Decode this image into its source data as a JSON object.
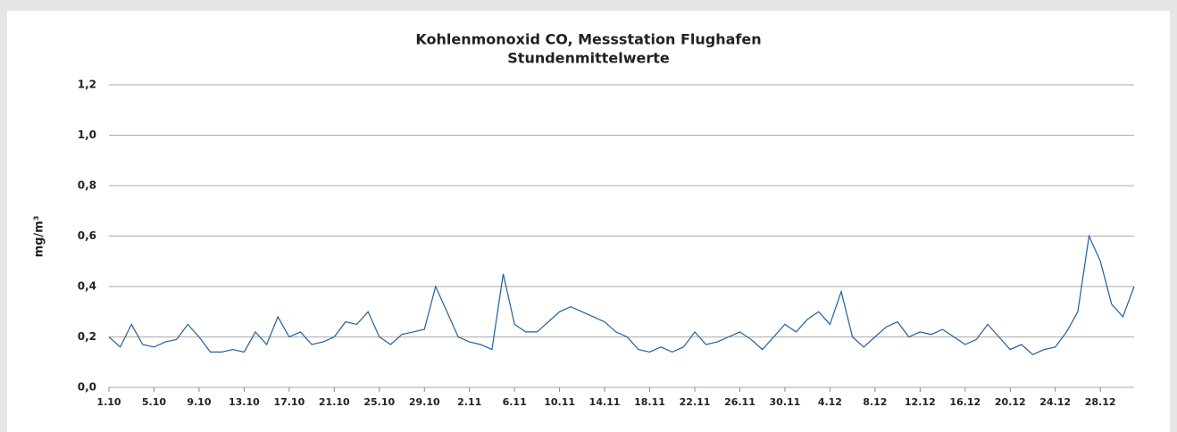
{
  "chart_data": {
    "type": "line",
    "title": "Kohlenmonoxid CO, Messstation Flughafen",
    "subtitle": "Stundenmittelwerte",
    "y_label": "mg/m³",
    "categories": [
      "1.10",
      null,
      null,
      null,
      "5.10",
      null,
      null,
      null,
      "9.10",
      null,
      null,
      null,
      "13.10",
      null,
      null,
      null,
      "17.10",
      null,
      null,
      null,
      "21.10",
      null,
      null,
      null,
      "25.10",
      null,
      null,
      null,
      "29.10",
      null,
      null,
      null,
      "2.11",
      null,
      null,
      null,
      "6.11",
      null,
      null,
      null,
      "10.11",
      null,
      null,
      null,
      "14.11",
      null,
      null,
      null,
      "18.11",
      null,
      null,
      null,
      "22.11",
      null,
      null,
      null,
      "26.11",
      null,
      null,
      null,
      "30.11",
      null,
      null,
      null,
      "4.12",
      null,
      null,
      null,
      "8.12",
      null,
      null,
      null,
      "12.12",
      null,
      null,
      null,
      "16.12",
      null,
      null,
      null,
      "20.12",
      null,
      null,
      null,
      "24.12",
      null,
      null,
      null,
      "28.12",
      null,
      null,
      null
    ],
    "series": [
      {
        "name": "CO",
        "color": "#1f5f9a",
        "values": [
          0.2,
          0.16,
          0.25,
          0.17,
          0.16,
          0.18,
          0.19,
          0.25,
          0.2,
          0.14,
          0.14,
          0.15,
          0.14,
          0.22,
          0.17,
          0.28,
          0.2,
          0.22,
          0.17,
          0.18,
          0.2,
          0.26,
          0.25,
          0.3,
          0.2,
          0.17,
          0.21,
          0.22,
          0.23,
          0.4,
          0.3,
          0.2,
          0.18,
          0.17,
          0.15,
          0.45,
          0.25,
          0.22,
          0.22,
          0.26,
          0.3,
          0.32,
          0.3,
          0.28,
          0.26,
          0.22,
          0.2,
          0.15,
          0.14,
          0.16,
          0.14,
          0.16,
          0.22,
          0.17,
          0.18,
          0.2,
          0.22,
          0.19,
          0.15,
          0.2,
          0.25,
          0.22,
          0.27,
          0.3,
          0.25,
          0.38,
          0.2,
          0.16,
          0.2,
          0.24,
          0.26,
          0.2,
          0.22,
          0.21,
          0.23,
          0.2,
          0.17,
          0.19,
          0.25,
          0.2,
          0.15,
          0.17,
          0.13,
          0.15,
          0.16,
          0.22,
          0.3,
          0.6,
          0.5,
          0.33,
          0.28,
          0.4
        ]
      }
    ],
    "ylim": [
      0,
      1.2
    ],
    "yticks": [
      {
        "value": 0,
        "label": "0,0"
      },
      {
        "value": 0.2,
        "label": "0,2"
      },
      {
        "value": 0.4,
        "label": "0,4"
      },
      {
        "value": 0.6,
        "label": "0,6"
      },
      {
        "value": 0.8,
        "label": "0,8"
      },
      {
        "value": 1.0,
        "label": "1,0"
      },
      {
        "value": 1.2,
        "label": "1,2"
      }
    ],
    "grid": true
  }
}
